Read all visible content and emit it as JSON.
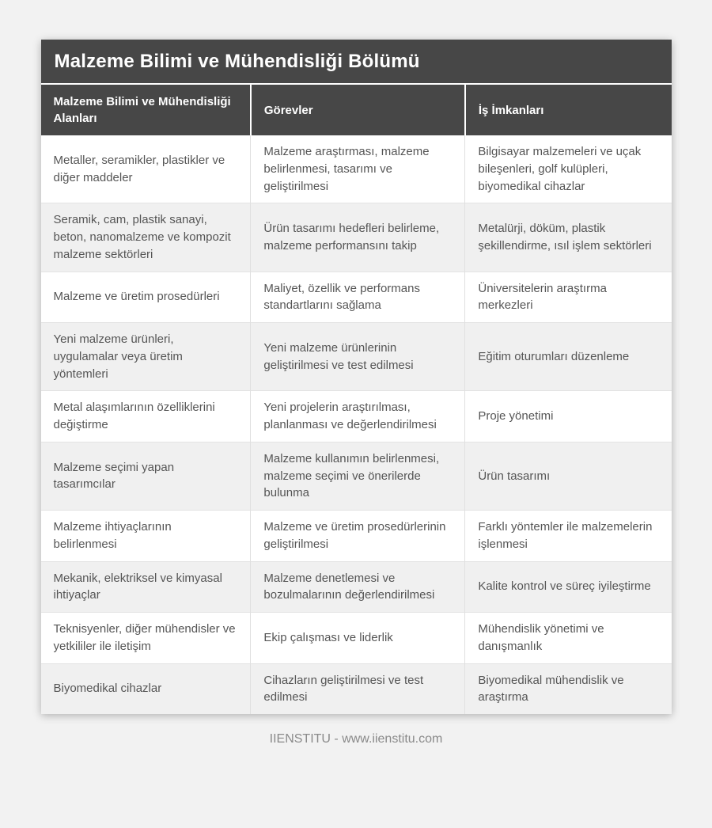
{
  "page": {
    "title": "Malzeme Bilimi ve Mühendisliği Bölümü",
    "footer": "IIENSTITU - www.iienstitu.com"
  },
  "table": {
    "columns": [
      "Malzeme Bilimi ve Mühendisliği Alanları",
      "Görevler",
      "İş İmkanları"
    ],
    "rows": [
      [
        "Metaller, seramikler, plastikler ve diğer maddeler",
        "Malzeme araştırması, malzeme belirlenmesi, tasarımı ve geliştirilmesi",
        "Bilgisayar malzemeleri ve uçak bileşenleri, golf kulüpleri, biyomedikal cihazlar"
      ],
      [
        "Seramik, cam, plastik sanayi, beton, nanomalzeme ve kompozit malzeme sektörleri",
        "Ürün tasarımı hedefleri belirleme, malzeme performansını takip",
        "Metalürji, döküm, plastik şekillendirme, ısıl işlem sektörleri"
      ],
      [
        "Malzeme ve üretim prosedürleri",
        "Maliyet, özellik ve performans standartlarını sağlama",
        "Üniversitelerin araştırma merkezleri"
      ],
      [
        "Yeni malzeme ürünleri, uygulamalar veya üretim yöntemleri",
        "Yeni malzeme ürünlerinin geliştirilmesi ve test edilmesi",
        "Eğitim oturumları düzenleme"
      ],
      [
        "Metal alaşımlarının özelliklerini değiştirme",
        "Yeni projelerin araştırılması, planlanması ve değerlendirilmesi",
        "Proje yönetimi"
      ],
      [
        "Malzeme seçimi yapan tasarımcılar",
        "Malzeme kullanımın belirlenmesi, malzeme seçimi ve önerilerde bulunma",
        "Ürün tasarımı"
      ],
      [
        "Malzeme ihtiyaçlarının belirlenmesi",
        "Malzeme ve üretim prosedürlerinin geliştirilmesi",
        "Farklı yöntemler ile malzemelerin işlenmesi"
      ],
      [
        "Mekanik, elektriksel ve kimyasal ihtiyaçlar",
        "Malzeme denetlemesi ve bozulmalarının değerlendirilmesi",
        "Kalite kontrol ve süreç iyileştirme"
      ],
      [
        "Teknisyenler, diğer mühendisler ve yetkililer ile iletişim",
        "Ekip çalışması ve liderlik",
        "Mühendislik yönetimi ve danışmanlık"
      ],
      [
        "Biyomedikal cihazlar",
        "Cihazların geliştirilmesi ve test edilmesi",
        "Biyomedikal mühendislik ve araştırma"
      ]
    ]
  },
  "colors": {
    "header_bg": "#474747",
    "page_bg": "#f2f2f2",
    "row_alt_bg": "#f0f0f0",
    "body_text": "#555555",
    "footer_text": "#8a8a8a",
    "divider": "#e0e0e0"
  }
}
